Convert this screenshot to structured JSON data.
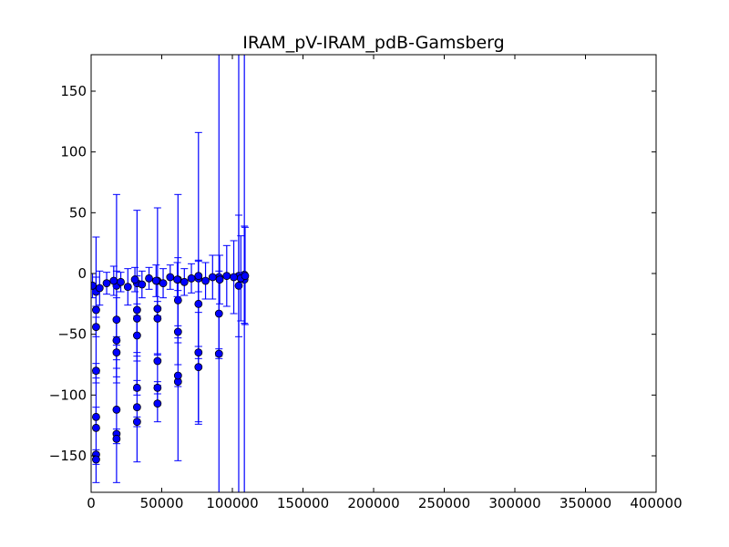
{
  "chart_data": {
    "type": "scatter",
    "title": "IRAM_pV-IRAM_pdB-Gamsberg",
    "xlabel": "",
    "ylabel": "",
    "xlim": [
      0,
      400000
    ],
    "ylim": [
      -180,
      180
    ],
    "xticks": [
      0,
      50000,
      100000,
      150000,
      200000,
      250000,
      300000,
      350000,
      400000
    ],
    "xtick_labels": [
      "0",
      "50000",
      "100000",
      "150000",
      "200000",
      "250000",
      "300000",
      "350000",
      "400000"
    ],
    "yticks": [
      -150,
      -100,
      -50,
      0,
      50,
      100,
      150
    ],
    "ytick_labels": [
      "−150",
      "−100",
      "−50",
      "0",
      "50",
      "100",
      "150"
    ],
    "grid": false,
    "legend": "none",
    "colors": {
      "marker": "#0000ff",
      "errorbar": "#0000ff",
      "marker_edge": "#000000",
      "axes": "#000000"
    },
    "series": [
      {
        "x": [
          3500,
          3500,
          3500,
          3500,
          3500,
          3500,
          3500,
          3500,
          18000,
          18000,
          18000,
          18000,
          18000,
          18000,
          18000,
          32500,
          32500,
          32500,
          32500,
          32500,
          32500,
          32500,
          47000,
          47000,
          47000,
          47000,
          47000,
          47000,
          61500,
          61500,
          61500,
          61500,
          61500,
          76000,
          76000,
          76000,
          76000,
          90500,
          90500,
          90500,
          104500,
          104500,
          108500,
          108500
        ],
        "y": [
          -149,
          -153,
          -127,
          -118,
          -80,
          -44,
          -30,
          -15,
          -132,
          -136,
          -112,
          -65,
          -55,
          -38,
          -10,
          -122,
          -110,
          -94,
          -51,
          -37,
          -30,
          -8,
          -107,
          -94,
          -72,
          -37,
          -29,
          -6,
          -89,
          -84,
          -48,
          -22,
          -5,
          -77,
          -65,
          -25,
          -4,
          -66,
          -33,
          -3,
          -10,
          -2,
          -5,
          -1
        ],
        "yerr": [
          4,
          4,
          45,
          8,
          6,
          8,
          60,
          12,
          4,
          4,
          60,
          6,
          35,
          40,
          75,
          4,
          45,
          6,
          45,
          35,
          5,
          60,
          15,
          5,
          35,
          30,
          6,
          60,
          4,
          70,
          5,
          35,
          70,
          45,
          5,
          35,
          120,
          4,
          35,
          190,
          190,
          50,
          190,
          40
        ]
      },
      {
        "x": [
          1000,
          6000,
          11000,
          16000,
          21000,
          26000,
          31000,
          36000,
          41000,
          46000,
          51000,
          56000,
          61000,
          66000,
          71000,
          76000,
          81000,
          86000,
          91000,
          96000,
          101000,
          106000,
          109000
        ],
        "y": [
          -10,
          -12,
          -8,
          -6,
          -7,
          -11,
          -5,
          -9,
          -4,
          -6,
          -8,
          -3,
          -5,
          -7,
          -4,
          -2,
          -6,
          -3,
          -5,
          -2,
          -3,
          -4,
          -2
        ],
        "yerr": [
          10,
          14,
          9,
          12,
          8,
          15,
          10,
          11,
          9,
          13,
          12,
          10,
          14,
          11,
          12,
          13,
          15,
          18,
          20,
          25,
          30,
          35,
          40
        ]
      }
    ]
  }
}
